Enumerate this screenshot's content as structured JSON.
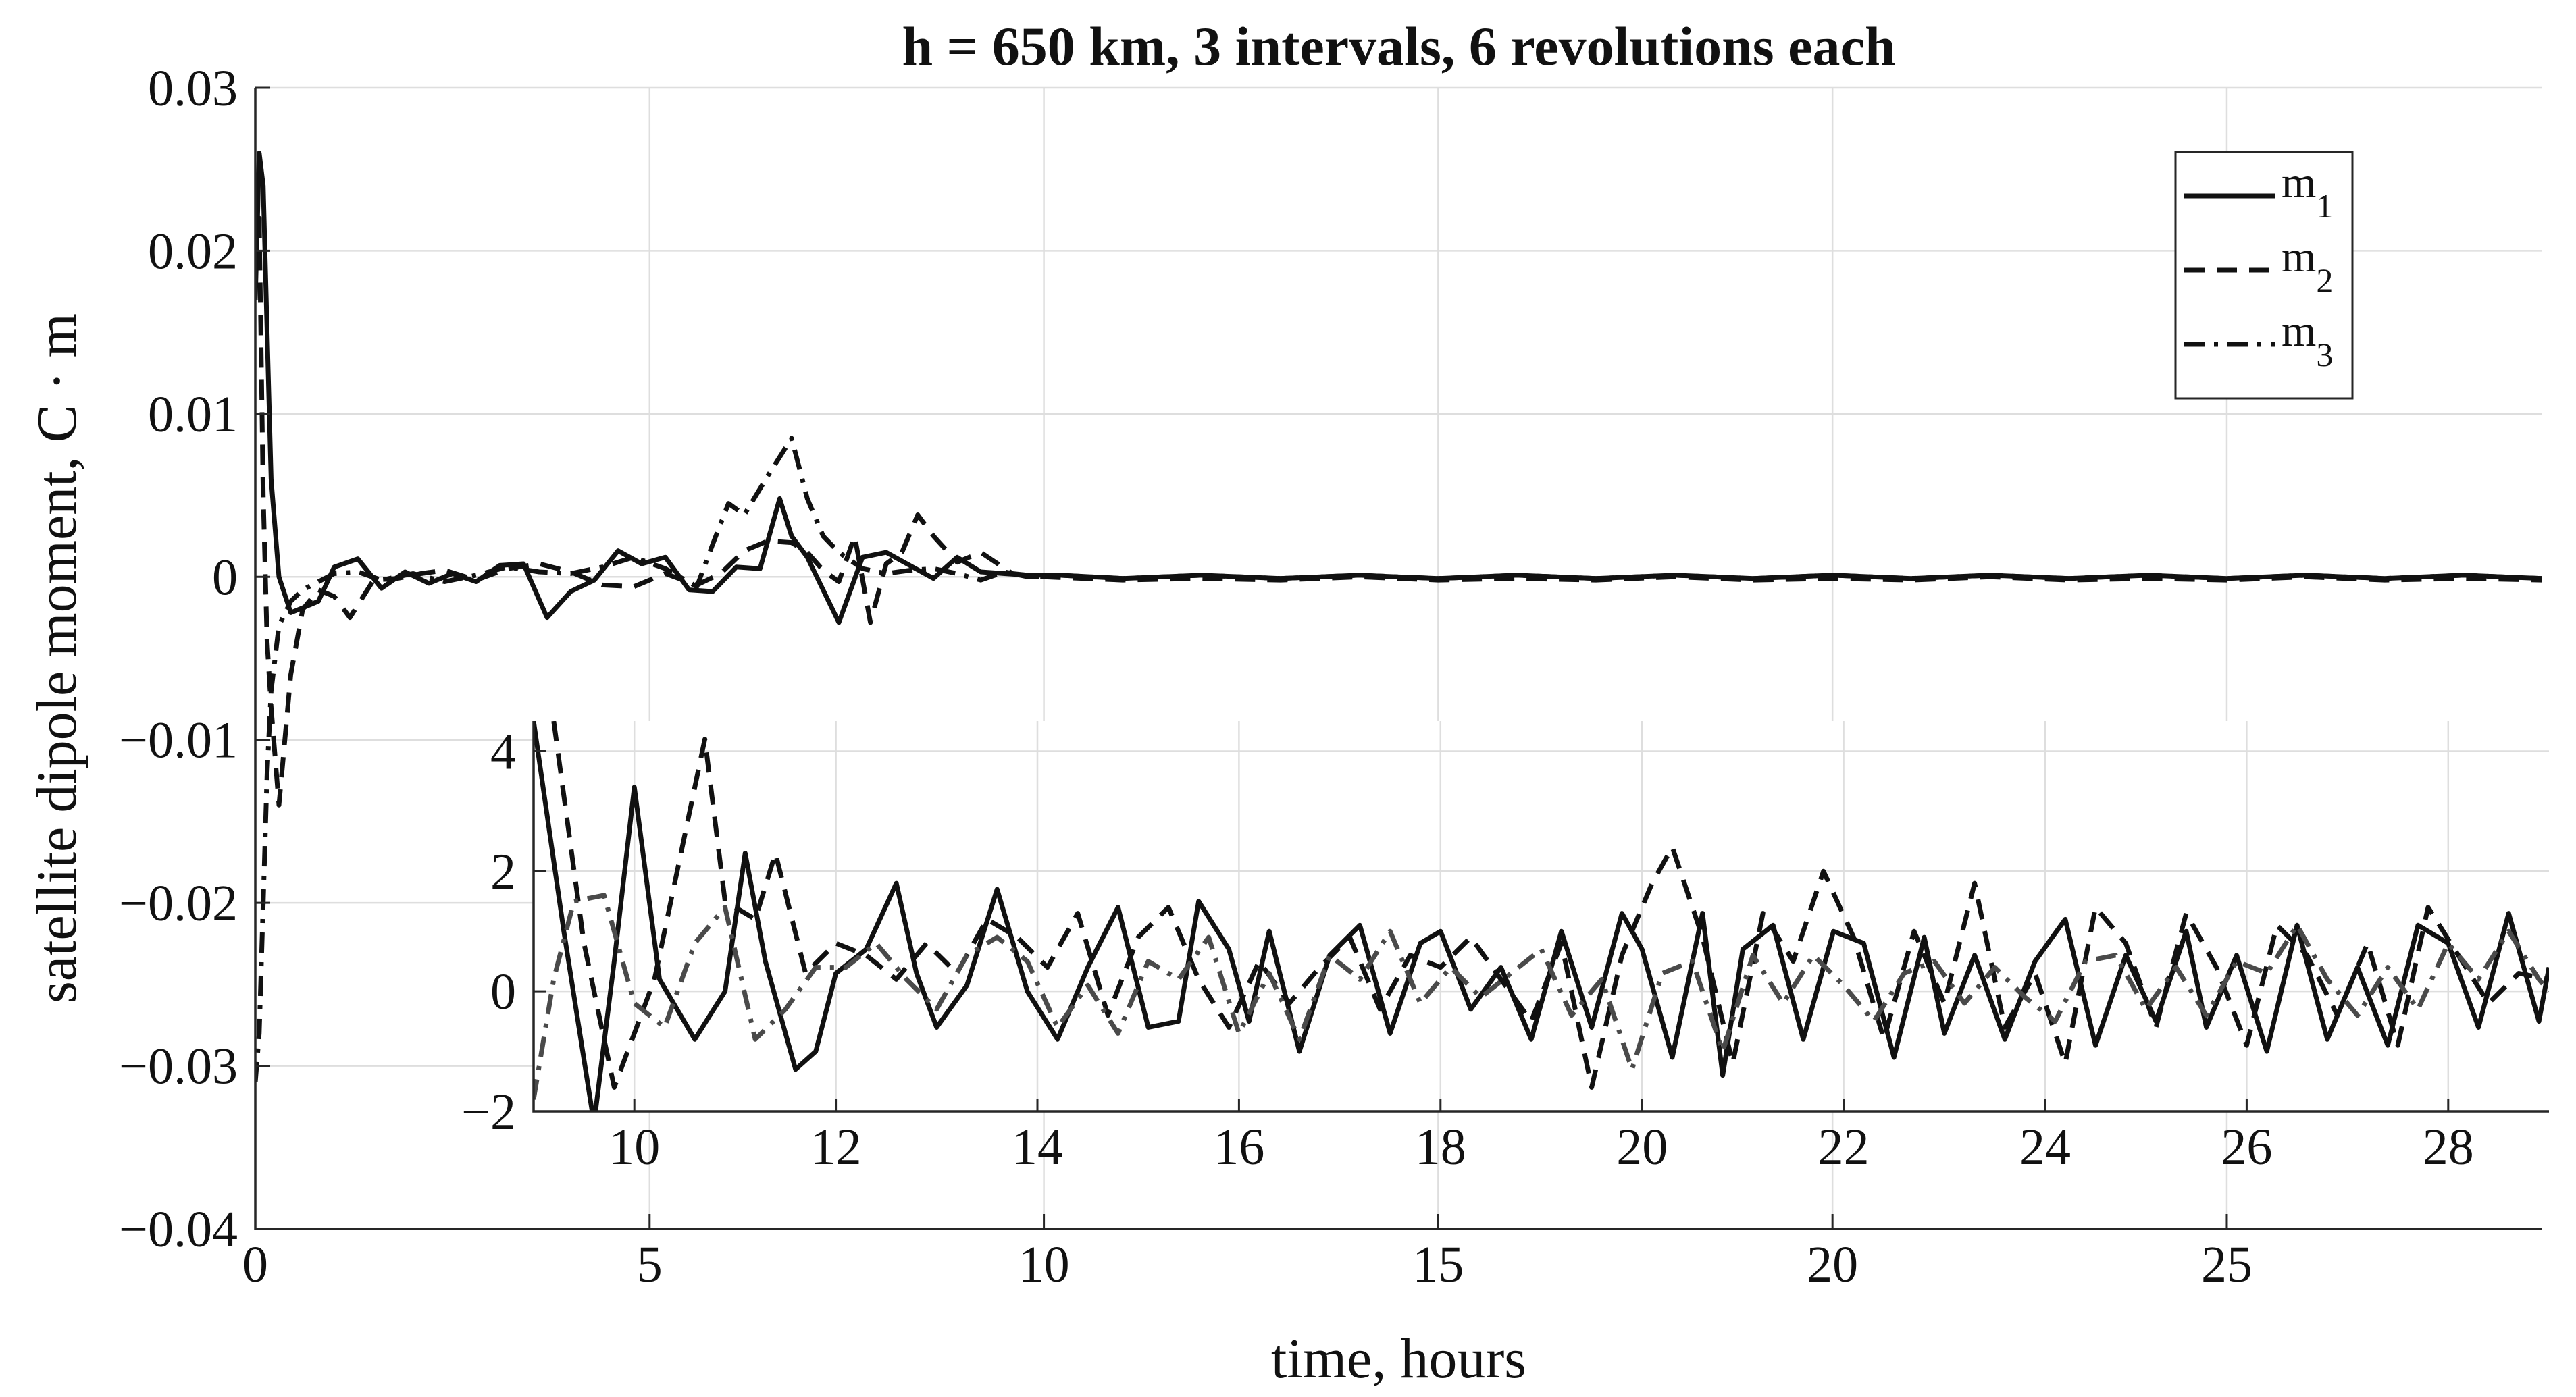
{
  "chart_data": [
    {
      "type": "line",
      "role": "main",
      "title": "h = 650 km, 3 intervals, 6 revolutions each",
      "xlabel": "time, hours",
      "ylabel": "satellite dipole moment, C · m",
      "xlim": [
        0,
        29
      ],
      "ylim": [
        -0.04,
        0.03
      ],
      "xticks": [
        0,
        5,
        10,
        15,
        20,
        25
      ],
      "xtick_labels": [
        "0",
        "5",
        "10",
        "15",
        "20",
        "25"
      ],
      "yticks": [
        -0.04,
        -0.03,
        -0.02,
        -0.01,
        0,
        0.01,
        0.02,
        0.03
      ],
      "ytick_labels": [
        "−0.04",
        "−0.03",
        "−0.02",
        "−0.01",
        "0",
        "0.01",
        "0.02",
        "0.03"
      ],
      "grid": true,
      "legend": {
        "position": "top-right",
        "entries": [
          {
            "base": "m",
            "sub": "1",
            "style": "solid"
          },
          {
            "base": "m",
            "sub": "2",
            "style": "dashed"
          },
          {
            "base": "m",
            "sub": "3",
            "style": "dashdot"
          }
        ]
      },
      "series": [
        {
          "name": "m1",
          "style": "solid",
          "x": [
            0,
            0.05,
            0.1,
            0.15,
            0.2,
            0.3,
            0.45,
            0.6,
            0.8,
            1.0,
            1.3,
            1.6,
            1.9,
            2.2,
            2.5,
            2.8,
            3.1,
            3.4,
            3.7,
            4.0,
            4.3,
            4.6,
            4.9,
            5.2,
            5.5,
            5.8,
            6.1,
            6.4,
            6.65,
            6.8,
            7.0,
            7.2,
            7.4,
            7.7,
            8.0,
            8.3,
            8.6,
            8.9,
            9.2,
            9.5,
            9.8,
            10.2,
            11,
            12,
            13,
            14,
            15,
            16,
            17,
            18,
            19,
            20,
            21,
            22,
            23,
            24,
            25,
            26,
            27,
            28,
            29
          ],
          "y": [
            0.017,
            0.026,
            0.024,
            0.015,
            0.006,
            0.0,
            -0.0022,
            -0.0019,
            -0.0015,
            0.0006,
            0.0011,
            -0.0007,
            0.0003,
            -0.0004,
            0.0002,
            -0.0003,
            0.0007,
            0.0008,
            -0.0025,
            -0.0009,
            -0.0002,
            0.0016,
            0.0008,
            0.0012,
            -0.0008,
            -0.0009,
            0.0006,
            0.0005,
            0.0048,
            0.0025,
            0.0012,
            -0.0008,
            -0.0028,
            0.0012,
            0.0015,
            0.0007,
            -0.0001,
            0.0012,
            0.0003,
            0.0002,
            0.0001,
            0.0001,
            -0.0001,
            0.0001,
            -0.0001,
            0.0001,
            -0.0001,
            0.0001,
            -0.0001,
            0.0001,
            -0.0001,
            0.0001,
            -0.0001,
            0.0001,
            -0.0001,
            0.0001,
            -0.0001,
            0.0001,
            -0.0001,
            0.0001,
            -0.0001
          ]
        },
        {
          "name": "m2",
          "style": "dashed",
          "x": [
            0,
            0.05,
            0.1,
            0.15,
            0.2,
            0.3,
            0.45,
            0.6,
            0.8,
            1.0,
            1.2,
            1.5,
            1.8,
            2.1,
            2.4,
            2.8,
            3.2,
            3.6,
            4.0,
            4.4,
            4.8,
            5.2,
            5.6,
            5.9,
            6.2,
            6.5,
            6.8,
            7.0,
            7.2,
            7.4,
            7.6,
            7.8,
            8.0,
            8.2,
            8.4,
            8.6,
            8.9,
            9.2,
            9.6,
            10,
            11,
            12,
            13,
            14,
            15,
            16,
            17,
            18,
            19,
            20,
            21,
            22,
            23,
            24,
            25,
            26,
            27,
            28,
            29
          ],
          "y": [
            0.02,
            0.022,
            0.005,
            -0.004,
            -0.008,
            -0.014,
            -0.006,
            -0.002,
            -0.0008,
            -0.0012,
            -0.0025,
            -0.0002,
            -0.0001,
            0.0002,
            0.0004,
            -0.0002,
            0.0005,
            0.0008,
            0.0003,
            -0.0005,
            -0.0006,
            0.0002,
            -0.0005,
            0.0002,
            0.0016,
            0.0022,
            0.0021,
            0.0015,
            0.0004,
            -0.0003,
            0.0025,
            -0.0028,
            0.0008,
            0.0015,
            0.0038,
            0.0025,
            0.0009,
            0.0015,
            0.0002,
            0.0,
            -0.0002,
            -0.0001,
            -0.0002,
            0.0,
            -0.0002,
            -0.0001,
            -0.0002,
            0.0,
            -0.0002,
            -0.0001,
            -0.0002,
            0.0,
            -0.0002,
            -0.0001,
            -0.0002,
            0.0,
            -0.0002,
            -0.0001,
            -0.0002
          ]
        },
        {
          "name": "m3",
          "style": "dashdot",
          "x": [
            0,
            0.05,
            0.1,
            0.15,
            0.2,
            0.3,
            0.45,
            0.6,
            0.8,
            1.0,
            1.3,
            1.6,
            2.0,
            2.4,
            2.8,
            3.2,
            3.6,
            4.0,
            4.4,
            4.8,
            5.2,
            5.6,
            5.8,
            6.0,
            6.2,
            6.5,
            6.8,
            7.0,
            7.2,
            7.4,
            7.7,
            8.0,
            8.3,
            8.6,
            8.9,
            9.2,
            9.5,
            9.8,
            10.2,
            11,
            12,
            13,
            14,
            15,
            16,
            17,
            18,
            19,
            20,
            21,
            22,
            23,
            24,
            25,
            26,
            27,
            28,
            29
          ],
          "y": [
            -0.031,
            -0.028,
            -0.02,
            -0.012,
            -0.007,
            -0.003,
            -0.0015,
            -0.0008,
            -0.0003,
            0.0002,
            0.0003,
            -0.0002,
            0.0002,
            -0.0003,
            0.0001,
            0.0006,
            0.0003,
            0.0002,
            0.0006,
            0.0012,
            0.0005,
            -0.0006,
            0.002,
            0.0045,
            0.0038,
            0.0062,
            0.0085,
            0.0048,
            0.0025,
            0.0015,
            0.0005,
            0.0002,
            0.0004,
            0.0005,
            0.0002,
            -0.0002,
            0.0003,
            0.0,
            0.0001,
            -0.0001,
            0.0001,
            -0.0001,
            0.0001,
            -0.0001,
            0.0001,
            -0.0001,
            0.0001,
            -0.0001,
            0.0001,
            -0.0001,
            0.0001,
            -0.0001,
            0.0001,
            -0.0001,
            0.0001,
            -0.0001,
            0.0001,
            -0.0001
          ]
        }
      ]
    },
    {
      "type": "line",
      "role": "inset",
      "xlim": [
        9,
        29
      ],
      "ylim": [
        -2,
        4.5
      ],
      "xticks": [
        10,
        12,
        14,
        16,
        18,
        20,
        22,
        24,
        26,
        28
      ],
      "xtick_labels": [
        "10",
        "12",
        "14",
        "16",
        "18",
        "20",
        "22",
        "24",
        "26",
        "28"
      ],
      "yticks": [
        -2,
        0,
        2,
        4
      ],
      "ytick_labels": [
        "−2",
        "0",
        "2",
        "4"
      ],
      "grid": true,
      "series": [
        {
          "name": "m1",
          "style": "solid",
          "x": [
            9.0,
            9.3,
            9.6,
            9.8,
            10.0,
            10.25,
            10.6,
            10.9,
            11.1,
            11.3,
            11.6,
            11.8,
            12.0,
            12.3,
            12.6,
            12.8,
            13.0,
            13.3,
            13.6,
            13.9,
            14.2,
            14.5,
            14.8,
            15.1,
            15.4,
            15.6,
            15.9,
            16.1,
            16.3,
            16.6,
            16.9,
            17.2,
            17.5,
            17.8,
            18.0,
            18.3,
            18.6,
            18.9,
            19.2,
            19.5,
            19.8,
            20.0,
            20.3,
            20.6,
            20.8,
            21.0,
            21.3,
            21.6,
            21.9,
            22.2,
            22.5,
            22.8,
            23.0,
            23.3,
            23.6,
            23.9,
            24.2,
            24.5,
            24.8,
            25.1,
            25.4,
            25.6,
            25.9,
            26.2,
            26.5,
            26.8,
            27.1,
            27.4,
            27.7,
            28.0,
            28.3,
            28.6,
            28.9,
            29.0
          ],
          "y": [
            4.5,
            1.0,
            -2.2,
            0.5,
            3.4,
            0.2,
            -0.8,
            0.0,
            2.3,
            0.5,
            -1.3,
            -1.0,
            0.3,
            0.7,
            1.8,
            0.3,
            -0.6,
            0.1,
            1.7,
            0.0,
            -0.8,
            0.4,
            1.4,
            -0.6,
            -0.5,
            1.5,
            0.7,
            -0.5,
            1.0,
            -1.0,
            0.6,
            1.1,
            -0.7,
            0.8,
            1.0,
            -0.3,
            0.4,
            -0.8,
            1.0,
            -0.6,
            1.3,
            0.7,
            -1.1,
            1.3,
            -1.4,
            0.7,
            1.1,
            -0.8,
            1.0,
            0.8,
            -1.1,
            0.9,
            -0.7,
            0.6,
            -0.8,
            0.5,
            1.2,
            -0.9,
            0.6,
            -0.5,
            1.0,
            -0.6,
            0.6,
            -1.0,
            1.1,
            -0.8,
            0.4,
            -0.9,
            1.1,
            0.8,
            -0.6,
            1.3,
            -0.5,
            0.4
          ]
        },
        {
          "name": "m2",
          "style": "dashed",
          "x": [
            9.2,
            9.5,
            9.8,
            10.2,
            10.5,
            10.7,
            10.9,
            11.2,
            11.4,
            11.7,
            12.0,
            12.3,
            12.6,
            12.9,
            13.2,
            13.5,
            13.8,
            14.1,
            14.4,
            14.7,
            15.0,
            15.3,
            15.6,
            15.9,
            16.2,
            16.5,
            16.8,
            17.1,
            17.4,
            17.7,
            18.0,
            18.3,
            18.6,
            18.9,
            19.2,
            19.5,
            19.8,
            20.1,
            20.3,
            20.6,
            20.9,
            21.2,
            21.5,
            21.8,
            22.1,
            22.4,
            22.7,
            23.0,
            23.3,
            23.6,
            23.9,
            24.2,
            24.5,
            24.8,
            25.1,
            25.4,
            25.7,
            26.0,
            26.3,
            26.6,
            26.9,
            27.2,
            27.5,
            27.8,
            28.1,
            28.4,
            28.7,
            29.0
          ],
          "y": [
            4.5,
            0.8,
            -1.6,
            0.2,
            2.6,
            4.2,
            1.5,
            1.2,
            2.3,
            0.3,
            0.8,
            0.6,
            0.2,
            0.8,
            0.3,
            1.2,
            0.9,
            0.4,
            1.3,
            -0.4,
            0.9,
            1.4,
            0.2,
            -0.6,
            0.5,
            -0.2,
            0.4,
            0.9,
            -0.3,
            0.6,
            0.4,
            0.9,
            0.2,
            -0.5,
            0.8,
            -1.6,
            0.6,
            1.8,
            2.4,
            0.9,
            -1.2,
            1.3,
            0.5,
            2.0,
            0.9,
            -0.8,
            1.0,
            -0.2,
            1.8,
            -0.6,
            0.3,
            -1.2,
            1.4,
            0.8,
            -0.6,
            1.3,
            0.4,
            -0.9,
            1.1,
            0.6,
            -0.4,
            0.8,
            -0.9,
            1.4,
            0.6,
            -0.2,
            0.3,
            0.2
          ]
        },
        {
          "name": "m3",
          "style": "dashdot",
          "x": [
            9.0,
            9.2,
            9.4,
            9.7,
            10.0,
            10.3,
            10.6,
            10.9,
            11.2,
            11.5,
            11.8,
            12.1,
            12.4,
            12.7,
            13.0,
            13.3,
            13.6,
            13.9,
            14.2,
            14.5,
            14.8,
            15.1,
            15.4,
            15.7,
            16.0,
            16.3,
            16.6,
            16.9,
            17.2,
            17.5,
            17.8,
            18.1,
            18.4,
            18.7,
            19.0,
            19.3,
            19.6,
            19.9,
            20.2,
            20.5,
            20.8,
            21.1,
            21.4,
            21.7,
            22.0,
            22.3,
            22.6,
            22.9,
            23.2,
            23.5,
            23.8,
            24.1,
            24.4,
            24.7,
            25.0,
            25.3,
            25.6,
            25.9,
            26.2,
            26.5,
            26.8,
            27.1,
            27.4,
            27.7,
            28.0,
            28.3,
            28.6,
            28.9,
            29.0
          ],
          "y": [
            -1.8,
            0.2,
            1.5,
            1.6,
            -0.2,
            -0.6,
            0.8,
            1.4,
            -0.8,
            -0.3,
            0.4,
            0.4,
            0.8,
            0.2,
            -0.3,
            0.6,
            0.9,
            0.5,
            -0.6,
            0.1,
            -0.7,
            0.5,
            0.2,
            0.9,
            -0.7,
            0.3,
            -0.8,
            0.6,
            0.2,
            1.0,
            -0.2,
            0.4,
            -0.1,
            0.3,
            0.7,
            -0.4,
            0.2,
            -1.3,
            0.3,
            0.5,
            -1.0,
            0.6,
            -0.2,
            0.6,
            0.1,
            -0.5,
            0.3,
            0.5,
            -0.2,
            0.4,
            -0.1,
            -0.5,
            0.5,
            0.6,
            -0.3,
            0.4,
            -0.4,
            0.5,
            0.3,
            1.1,
            0.2,
            -0.4,
            0.4,
            -0.3,
            0.8,
            0.2,
            1.0,
            0.2,
            0.0
          ]
        }
      ]
    }
  ]
}
